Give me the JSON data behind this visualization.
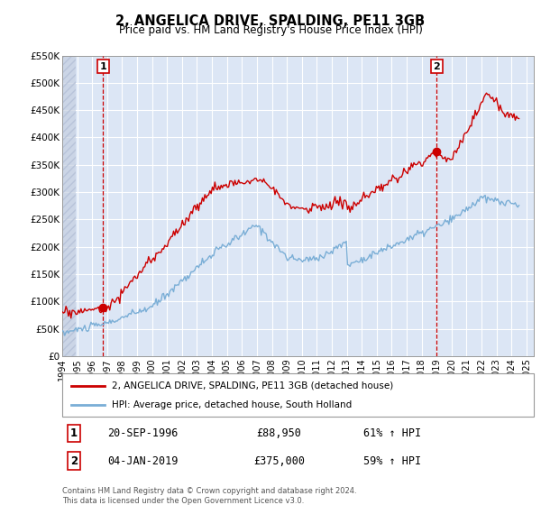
{
  "title": "2, ANGELICA DRIVE, SPALDING, PE11 3GB",
  "subtitle": "Price paid vs. HM Land Registry's House Price Index (HPI)",
  "xlim": [
    1994.0,
    2025.5
  ],
  "ylim": [
    0,
    550000
  ],
  "yticks": [
    0,
    50000,
    100000,
    150000,
    200000,
    250000,
    300000,
    350000,
    400000,
    450000,
    500000,
    550000
  ],
  "ytick_labels": [
    "£0",
    "£50K",
    "£100K",
    "£150K",
    "£200K",
    "£250K",
    "£300K",
    "£350K",
    "£400K",
    "£450K",
    "£500K",
    "£550K"
  ],
  "xticks": [
    1994,
    1995,
    1996,
    1997,
    1998,
    1999,
    2000,
    2001,
    2002,
    2003,
    2004,
    2005,
    2006,
    2007,
    2008,
    2009,
    2010,
    2011,
    2012,
    2013,
    2014,
    2015,
    2016,
    2017,
    2018,
    2019,
    2020,
    2021,
    2022,
    2023,
    2024,
    2025
  ],
  "red_color": "#cc0000",
  "blue_color": "#7aaed6",
  "vline1_x": 1996.72,
  "vline2_x": 2019.01,
  "sale1_x": 1996.72,
  "sale1_y": 88950,
  "sale2_x": 2019.01,
  "sale2_y": 375000,
  "legend_line1": "2, ANGELICA DRIVE, SPALDING, PE11 3GB (detached house)",
  "legend_line2": "HPI: Average price, detached house, South Holland",
  "table_row1_label": "1",
  "table_row1_date": "20-SEP-1996",
  "table_row1_price": "£88,950",
  "table_row1_hpi": "61% ↑ HPI",
  "table_row2_label": "2",
  "table_row2_date": "04-JAN-2019",
  "table_row2_price": "£375,000",
  "table_row2_hpi": "59% ↑ HPI",
  "footnote": "Contains HM Land Registry data © Crown copyright and database right 2024.\nThis data is licensed under the Open Government Licence v3.0.",
  "bg_color": "#ffffff",
  "plot_bg_color": "#dce6f5",
  "grid_color": "#ffffff",
  "hatch_color": "#c5cfe0"
}
